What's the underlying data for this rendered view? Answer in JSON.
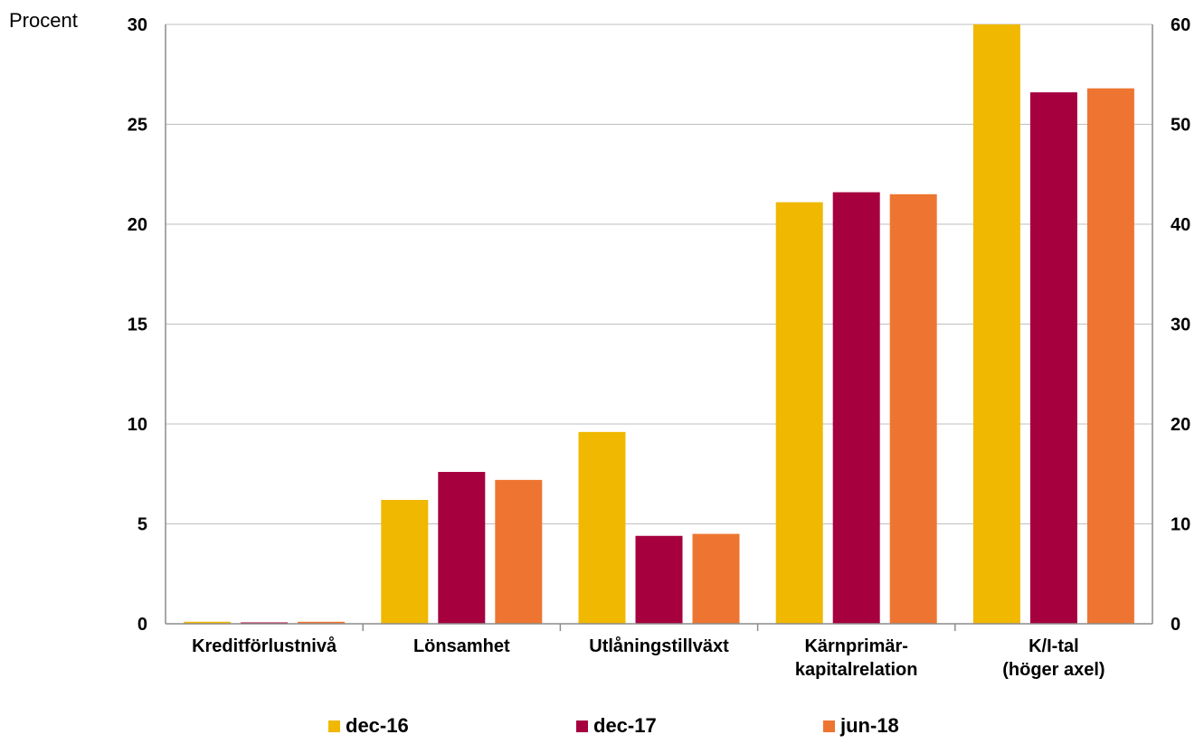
{
  "chart_data": {
    "type": "bar",
    "unit_label": "Procent",
    "categories": [
      [
        "Kreditförlustnivå"
      ],
      [
        "Lönsamhet"
      ],
      [
        "Utlåningstillväxt"
      ],
      [
        "Kärnprimär-",
        "kapitalrelation"
      ],
      [
        "K/I-tal",
        "(höger axel)"
      ]
    ],
    "series": [
      {
        "name": "dec-16",
        "color": "#F0B800",
        "values": [
          0.1,
          6.2,
          9.6,
          21.1,
          30.0
        ]
      },
      {
        "name": "dec-17",
        "color": "#A6003F",
        "values": [
          0.05,
          7.6,
          4.4,
          21.6,
          26.6
        ]
      },
      {
        "name": "jun-18",
        "color": "#EE7531",
        "values": [
          0.1,
          7.2,
          4.5,
          21.5,
          26.8
        ]
      }
    ],
    "ylim_left": [
      0,
      30
    ],
    "yticks_left": [
      0,
      5,
      10,
      15,
      20,
      25,
      30
    ],
    "ylim_right": [
      0,
      60
    ],
    "yticks_right": [
      0,
      10,
      20,
      30,
      40,
      50,
      60
    ],
    "grid": true,
    "legend_position": "bottom"
  }
}
